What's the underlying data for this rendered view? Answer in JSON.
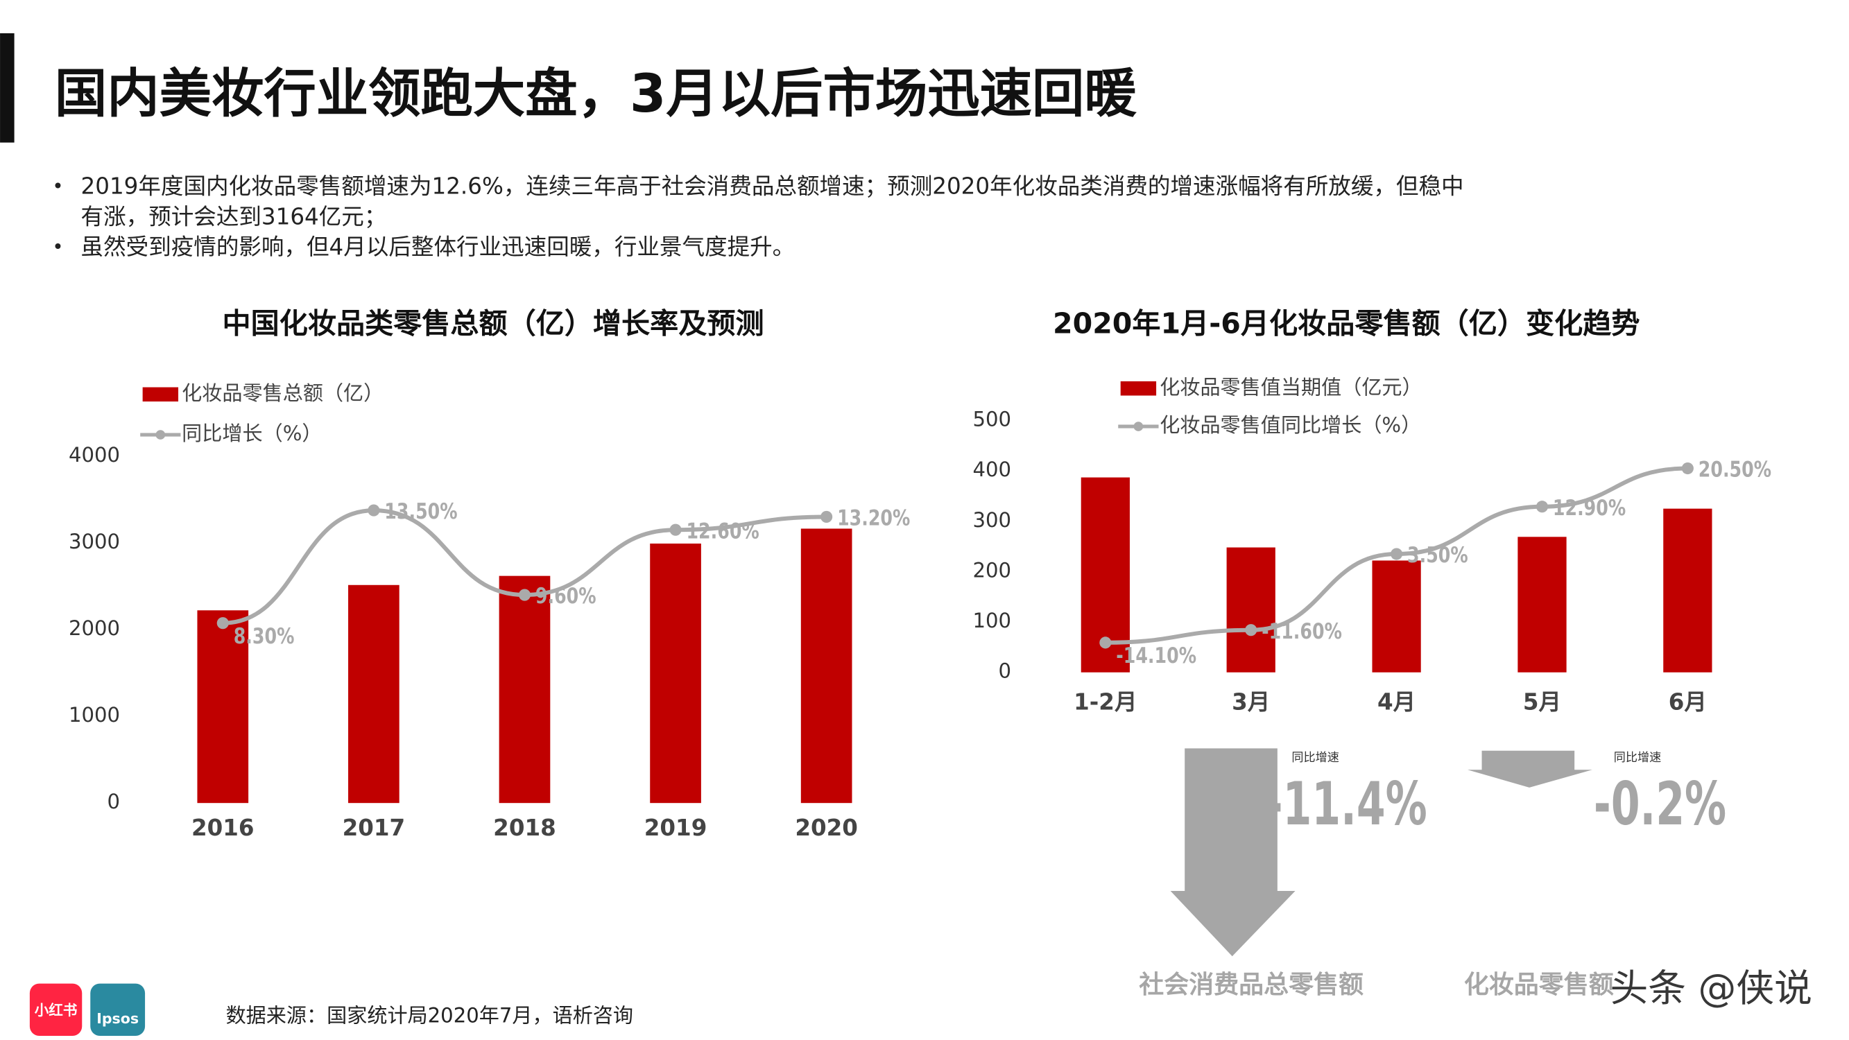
{
  "title": "国内美妆行业领跑大盘，3月以后市场迅速回暖",
  "bullets": [
    [
      "2019年度国内化妆品零售额增速为12.6%，连续三年高于社会消费品总额增速；预测2020年化妆品类消费的增速涨幅将有所放缓，但稳中",
      "有涨，预计会达到3164亿元；"
    ],
    [
      "虽然受到疫情的影响，但4月以后整体行业迅速回暖，行业景气度提升。"
    ]
  ],
  "chart_data": [
    {
      "type": "bar_line",
      "title": "中国化妆品类零售总额（亿）增长率及预测",
      "categories": [
        "2016",
        "2017",
        "2018",
        "2019",
        "2020"
      ],
      "ylim": [
        0,
        4000
      ],
      "yticks": [
        0,
        1000,
        2000,
        3000,
        4000
      ],
      "y2lim": [
        0,
        16
      ],
      "series": [
        {
          "name": "化妆品零售总额（亿）",
          "color": "#c00000",
          "values": [
            2222,
            2514,
            2619,
            2992,
            3164
          ]
        },
        {
          "name": "同比增长（%）",
          "color": "#aaaaaa",
          "axis": "y2",
          "values": [
            8.3,
            13.5,
            9.6,
            12.6,
            13.2
          ],
          "value_labels": [
            "8.30%",
            "13.50%",
            "9.60%",
            "12.60%",
            "13.20%"
          ]
        }
      ]
    },
    {
      "type": "bar_line",
      "title": "2020年1月-6月化妆品零售额（亿）变化趋势",
      "categories": [
        "1-2月",
        "3月",
        "4月",
        "5月",
        "6月"
      ],
      "ylim": [
        0,
        500
      ],
      "yticks": [
        0,
        100,
        200,
        300,
        400,
        500
      ],
      "y2lim": [
        -20,
        30
      ],
      "series": [
        {
          "name": "化妆品零售值当期值（亿元）",
          "color": "#c00000",
          "values": [
            387,
            248,
            222,
            269,
            325
          ]
        },
        {
          "name": "化妆品零售值同比增长（%）",
          "color": "#aaaaaa",
          "axis": "y2",
          "values": [
            -14.1,
            -11.6,
            3.5,
            12.9,
            20.5
          ],
          "value_labels": [
            "-14.10%",
            "-11.60%",
            "3.50%",
            "12.90%",
            "20.50%"
          ]
        }
      ]
    }
  ],
  "growth_notes": [
    {
      "caption": "同比增速",
      "value": "-11.4%",
      "label": "社会消费品总零售额"
    },
    {
      "caption": "同比增速",
      "value": "-0.2%",
      "label": "化妆品零售额"
    }
  ],
  "source": "数据来源：国家统计局2020年7月，语析咨询",
  "logos": [
    "小红书",
    "Ipsos"
  ],
  "watermark": "头条 @侠说"
}
